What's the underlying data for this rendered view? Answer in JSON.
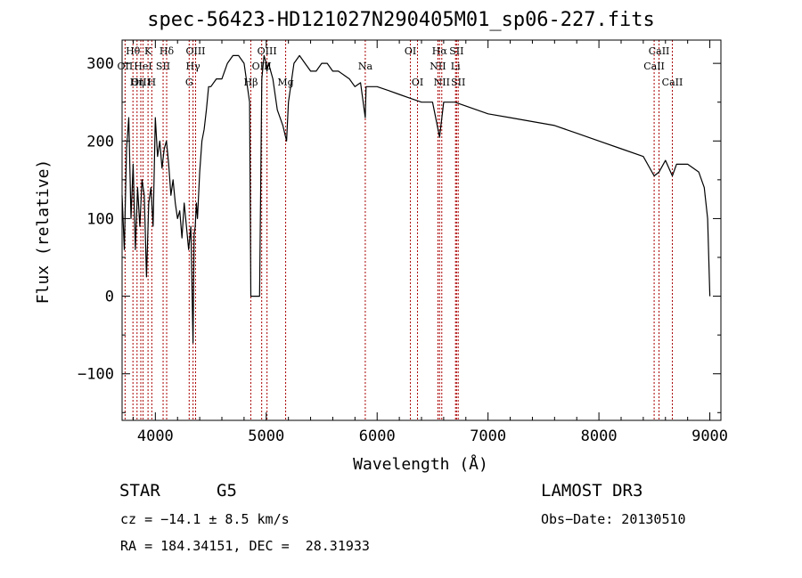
{
  "chart_data": {
    "type": "line",
    "title": "spec-56423-HD121027N290405M01_sp06-227.fits",
    "xlabel": "Wavelength (Å)",
    "ylabel": "Flux (relative)",
    "xlim": [
      3700,
      9100
    ],
    "ylim": [
      -160,
      330
    ],
    "xticks": [
      4000,
      5000,
      6000,
      7000,
      8000,
      9000
    ],
    "yticks": [
      -100,
      0,
      100,
      200,
      300
    ],
    "series": [
      {
        "name": "flux",
        "x": [
          3700,
          3720,
          3740,
          3760,
          3780,
          3800,
          3820,
          3840,
          3860,
          3880,
          3900,
          3920,
          3940,
          3960,
          3980,
          4000,
          4020,
          4040,
          4060,
          4080,
          4100,
          4120,
          4140,
          4160,
          4180,
          4200,
          4220,
          4240,
          4260,
          4280,
          4300,
          4320,
          4340,
          4350,
          4360,
          4370,
          4380,
          4400,
          4420,
          4440,
          4460,
          4480,
          4500,
          4550,
          4600,
          4650,
          4700,
          4750,
          4800,
          4850,
          4861,
          4880,
          4900,
          4910,
          4930,
          4940,
          4960,
          4980,
          5000,
          5007,
          5020,
          5040,
          5060,
          5100,
          5150,
          5183,
          5200,
          5250,
          5300,
          5350,
          5400,
          5450,
          5500,
          5550,
          5600,
          5650,
          5700,
          5750,
          5800,
          5850,
          5893,
          5900,
          5950,
          6000,
          6100,
          6200,
          6300,
          6400,
          6500,
          6563,
          6600,
          6700,
          6800,
          6900,
          7000,
          7200,
          7400,
          7600,
          7800,
          8000,
          8200,
          8400,
          8498,
          8542,
          8600,
          8662,
          8700,
          8800,
          8900,
          8950,
          8980,
          9000
        ],
        "y": [
          130,
          60,
          190,
          230,
          100,
          170,
          60,
          140,
          90,
          150,
          130,
          25,
          120,
          140,
          90,
          230,
          180,
          200,
          165,
          190,
          200,
          170,
          130,
          150,
          120,
          100,
          110,
          75,
          120,
          90,
          60,
          90,
          -60,
          80,
          90,
          120,
          100,
          160,
          200,
          215,
          240,
          270,
          270,
          280,
          280,
          300,
          310,
          310,
          300,
          250,
          0,
          0,
          0,
          0,
          0,
          0,
          280,
          310,
          300,
          290,
          300,
          290,
          280,
          240,
          220,
          200,
          250,
          300,
          310,
          300,
          290,
          290,
          300,
          300,
          290,
          290,
          285,
          280,
          270,
          275,
          230,
          270,
          270,
          270,
          265,
          260,
          255,
          250,
          250,
          205,
          250,
          250,
          245,
          240,
          235,
          230,
          225,
          220,
          210,
          200,
          190,
          180,
          155,
          160,
          175,
          155,
          170,
          170,
          160,
          140,
          100,
          0
        ]
      }
    ],
    "line_markers": [
      {
        "label": "Hθ",
        "x": 3798,
        "row": 1
      },
      {
        "label": "OII",
        "x": 3727,
        "row": 2
      },
      {
        "label": "OIII",
        "x": 3869,
        "row": 3
      },
      {
        "label": "Hη",
        "x": 3835,
        "row": 3
      },
      {
        "label": "K",
        "x": 3934,
        "row": 1
      },
      {
        "label": "HeI",
        "x": 3889,
        "row": 2
      },
      {
        "label": "SII",
        "x": 4070,
        "row": 2
      },
      {
        "label": "H",
        "x": 3968,
        "row": 3
      },
      {
        "label": "Hδ",
        "x": 4102,
        "row": 1
      },
      {
        "label": "OIII",
        "x": 4363,
        "row": 1
      },
      {
        "label": "Hγ",
        "x": 4340,
        "row": 2
      },
      {
        "label": "G",
        "x": 4305,
        "row": 3
      },
      {
        "label": "OIII",
        "x": 5007,
        "row": 1
      },
      {
        "label": "OIII",
        "x": 4959,
        "row": 2
      },
      {
        "label": "Hβ",
        "x": 4861,
        "row": 3
      },
      {
        "label": "Mg",
        "x": 5175,
        "row": 3
      },
      {
        "label": "Na",
        "x": 5893,
        "row": 2
      },
      {
        "label": "OI",
        "x": 6300,
        "row": 1
      },
      {
        "label": "OI",
        "x": 6364,
        "row": 3
      },
      {
        "label": "Hα",
        "x": 6563,
        "row": 1
      },
      {
        "label": "SII",
        "x": 6716,
        "row": 1
      },
      {
        "label": "NII",
        "x": 6548,
        "row": 2
      },
      {
        "label": "Li",
        "x": 6707,
        "row": 2
      },
      {
        "label": "NII",
        "x": 6583,
        "row": 3
      },
      {
        "label": "SII",
        "x": 6731,
        "row": 3
      },
      {
        "label": "CaII",
        "x": 8542,
        "row": 1
      },
      {
        "label": "CaII",
        "x": 8498,
        "row": 2
      },
      {
        "label": "CaII",
        "x": 8662,
        "row": 3
      }
    ]
  },
  "info": {
    "class_label": "STAR",
    "subclass": "G5",
    "survey": "LAMOST DR3",
    "redshift": "cz = −14.1 ± 8.5 km/s",
    "obs_date": "Obs−Date: 20130510",
    "coords": "RA = 184.34151, DEC =  28.31933"
  },
  "colors": {
    "marker_line": "#aa0000",
    "axis": "#000000",
    "spectrum": "#000000"
  }
}
